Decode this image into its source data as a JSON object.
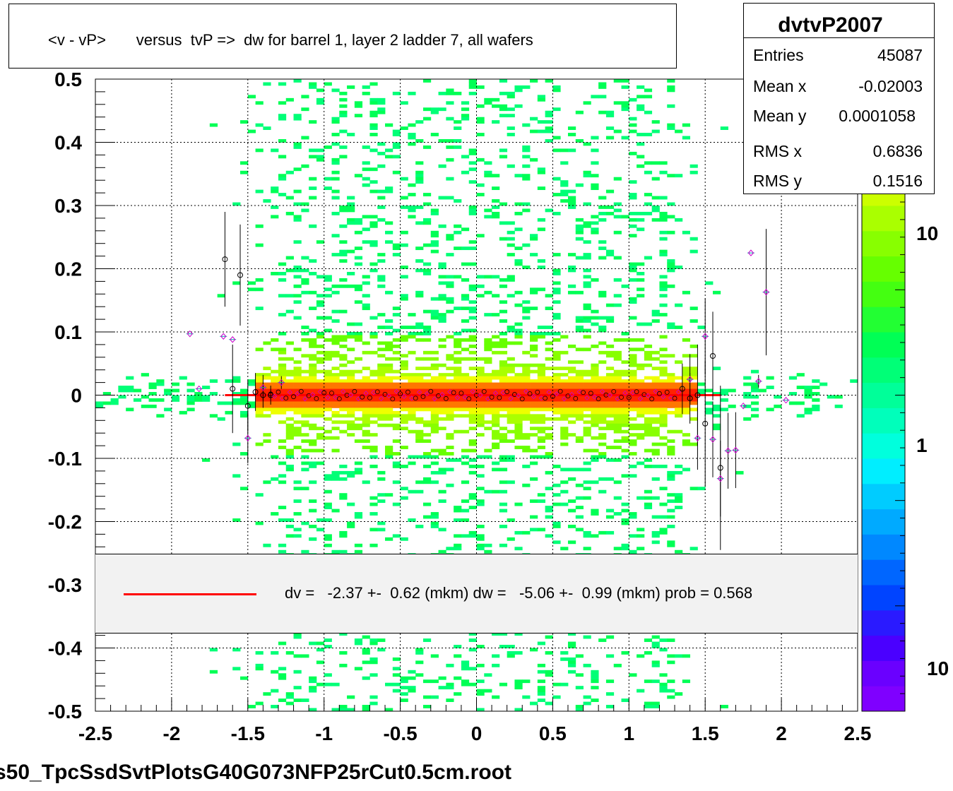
{
  "title": "<v - vP>       versus  tvP =>  dw for barrel 1, layer 2 ladder 7, all wafers",
  "stats": {
    "name": "dvtvP2007",
    "rows": [
      {
        "label": "Entries",
        "value": "45087"
      },
      {
        "label": "Mean x",
        "value": "-0.02003"
      },
      {
        "label": "Mean y",
        "value": "0.0001058"
      },
      {
        "label": "RMS x",
        "value": "0.6836"
      },
      {
        "label": "RMS y",
        "value": "0.1516"
      }
    ]
  },
  "legend": {
    "text": "dv =   -2.37 +-  0.62 (mkm) dw =   -5.06 +-  0.99 (mkm) prob = 0.568",
    "line_color": "#ff0000"
  },
  "footer": "s50_TpcSsdSvtPlotsG40G073NFP25rCut0.5cm.root",
  "colors": {
    "fit_line": "#ff0000",
    "palette": [
      "#7f00ff",
      "#6a00ff",
      "#4a00ff",
      "#2a1aff",
      "#0044ff",
      "#0066ff",
      "#0088ff",
      "#00aaff",
      "#00ccff",
      "#00eeff",
      "#00ffdd",
      "#00ffbb",
      "#00ff99",
      "#00ff77",
      "#00ff55",
      "#22ff33",
      "#44ff11",
      "#66ff00",
      "#88ff00",
      "#aaff00",
      "#ccff00",
      "#eeff00",
      "#ffee00",
      "#ffcc00",
      "#ffaa00"
    ]
  },
  "chart_data": {
    "type": "heatmap",
    "xlim": [
      -2.5,
      2.5
    ],
    "ylim": [
      -0.5,
      0.5
    ],
    "x_ticks": [
      "-2.5",
      "-2",
      "-1.5",
      "-1",
      "-0.5",
      "0",
      "0.5",
      "1",
      "1.5",
      "2",
      "2.5"
    ],
    "x_tick_values": [
      -2.5,
      -2,
      -1.5,
      -1,
      -0.5,
      0,
      0.5,
      1,
      1.5,
      2,
      2.5
    ],
    "y_ticks": [
      "0.5",
      "0.4",
      "0.3",
      "0.2",
      "0.1",
      "0",
      "-0.1",
      "-0.2",
      "-0.3",
      "-0.4",
      "-0.5"
    ],
    "y_tick_values": [
      0.5,
      0.4,
      0.3,
      0.2,
      0.1,
      0,
      -0.1,
      -0.2,
      -0.3,
      -0.4,
      -0.5
    ],
    "grid": true,
    "color_scale": {
      "type": "log",
      "labels": [
        "10",
        "1",
        "10"
      ]
    },
    "fit": {
      "x_range": [
        -1.65,
        1.6
      ],
      "y": 0.0
    },
    "points_dv": [
      {
        "x": -1.65,
        "y": 0.215,
        "err": 0.075
      },
      {
        "x": -1.6,
        "y": 0.01,
        "err": 0.07
      },
      {
        "x": -1.55,
        "y": 0.19,
        "err": 0.08
      },
      {
        "x": -1.5,
        "y": -0.017,
        "err": 0.04
      },
      {
        "x": -1.45,
        "y": 0.005,
        "err": 0.03
      },
      {
        "x": -1.4,
        "y": 0.0,
        "err": 0.02
      },
      {
        "x": -1.35,
        "y": 0.0,
        "err": 0.015
      },
      {
        "x": 1.35,
        "y": 0.01,
        "err": 0.04
      },
      {
        "x": 1.4,
        "y": -0.005,
        "err": 0.04
      },
      {
        "x": 1.45,
        "y": 0.0,
        "err": 0.08
      },
      {
        "x": 1.5,
        "y": -0.045,
        "err": 0.1
      },
      {
        "x": 1.55,
        "y": 0.062,
        "err": 0.07
      },
      {
        "x": 1.6,
        "y": -0.115,
        "err": 0.13
      }
    ],
    "points_dw": [
      {
        "x": -1.88,
        "y": 0.097,
        "err": 0.0
      },
      {
        "x": -1.82,
        "y": 0.01,
        "err": 0.0
      },
      {
        "x": -1.66,
        "y": 0.093,
        "err": 0.0
      },
      {
        "x": -1.6,
        "y": 0.088,
        "err": 0.0
      },
      {
        "x": -1.5,
        "y": -0.068,
        "err": 0.04
      },
      {
        "x": -1.4,
        "y": 0.012,
        "err": 0.02
      },
      {
        "x": -1.28,
        "y": 0.02,
        "err": 0.01
      },
      {
        "x": 1.4,
        "y": 0.025,
        "err": 0.04
      },
      {
        "x": 1.45,
        "y": -0.068,
        "err": 0.05
      },
      {
        "x": 1.5,
        "y": 0.093,
        "err": 0.06
      },
      {
        "x": 1.55,
        "y": -0.07,
        "err": 0.06
      },
      {
        "x": 1.6,
        "y": -0.132,
        "err": 0.06
      },
      {
        "x": 1.65,
        "y": -0.088,
        "err": 0.06
      },
      {
        "x": 1.7,
        "y": -0.087,
        "err": 0.06
      },
      {
        "x": 1.75,
        "y": -0.017,
        "err": 0.0
      },
      {
        "x": 1.8,
        "y": 0.225,
        "err": 0.0
      },
      {
        "x": 1.85,
        "y": 0.022,
        "err": 0.01
      },
      {
        "x": 1.9,
        "y": 0.163,
        "err": 0.1
      },
      {
        "x": 2.03,
        "y": -0.008,
        "err": 0.0
      }
    ]
  }
}
